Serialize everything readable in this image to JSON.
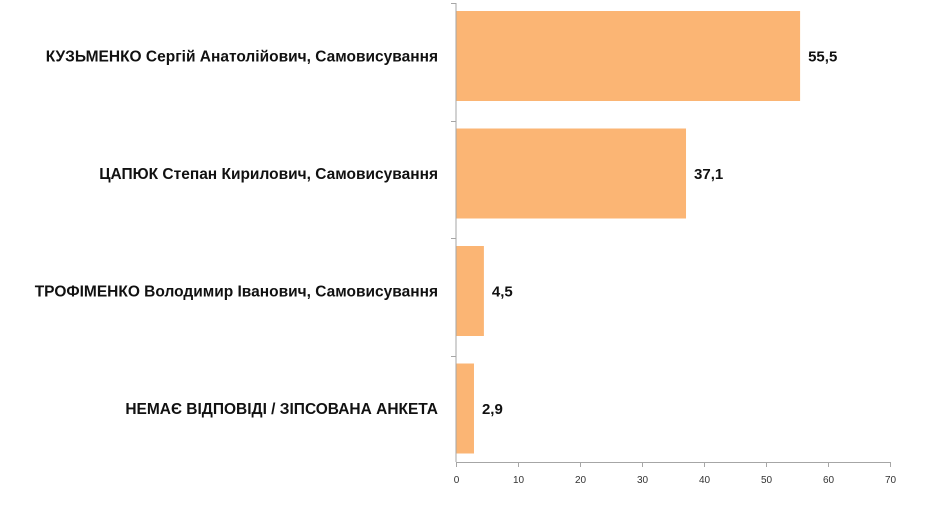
{
  "chart_data": {
    "type": "bar",
    "orientation": "horizontal",
    "title": "",
    "xlabel": "",
    "ylabel": "",
    "categories": [
      "КУЗЬМЕНКО Сергій Анатолійович, Самовисування",
      "ЦАПЮК Степан Кирилович, Самовисування",
      "ТРОФІМЕНКО Володимир Іванович, Самовисування",
      "НЕМАЄ ВІДПОВІДІ / ЗІПСОВАНА АНКЕТА"
    ],
    "values": [
      55.5,
      37.1,
      4.5,
      2.9
    ],
    "value_labels": [
      "55,5",
      "37,1",
      "4,5",
      "2,9"
    ],
    "xlim": [
      0,
      70
    ],
    "x_ticks": [
      0,
      10,
      20,
      30,
      40,
      50,
      60,
      70
    ],
    "x_tick_labels": [
      "0",
      "10",
      "20",
      "30",
      "40",
      "50",
      "60",
      "70"
    ],
    "grid": false,
    "legend": "none",
    "colors": {
      "bar": "#fbb574",
      "axis": "#a6a6a6",
      "text": "#111111"
    }
  }
}
